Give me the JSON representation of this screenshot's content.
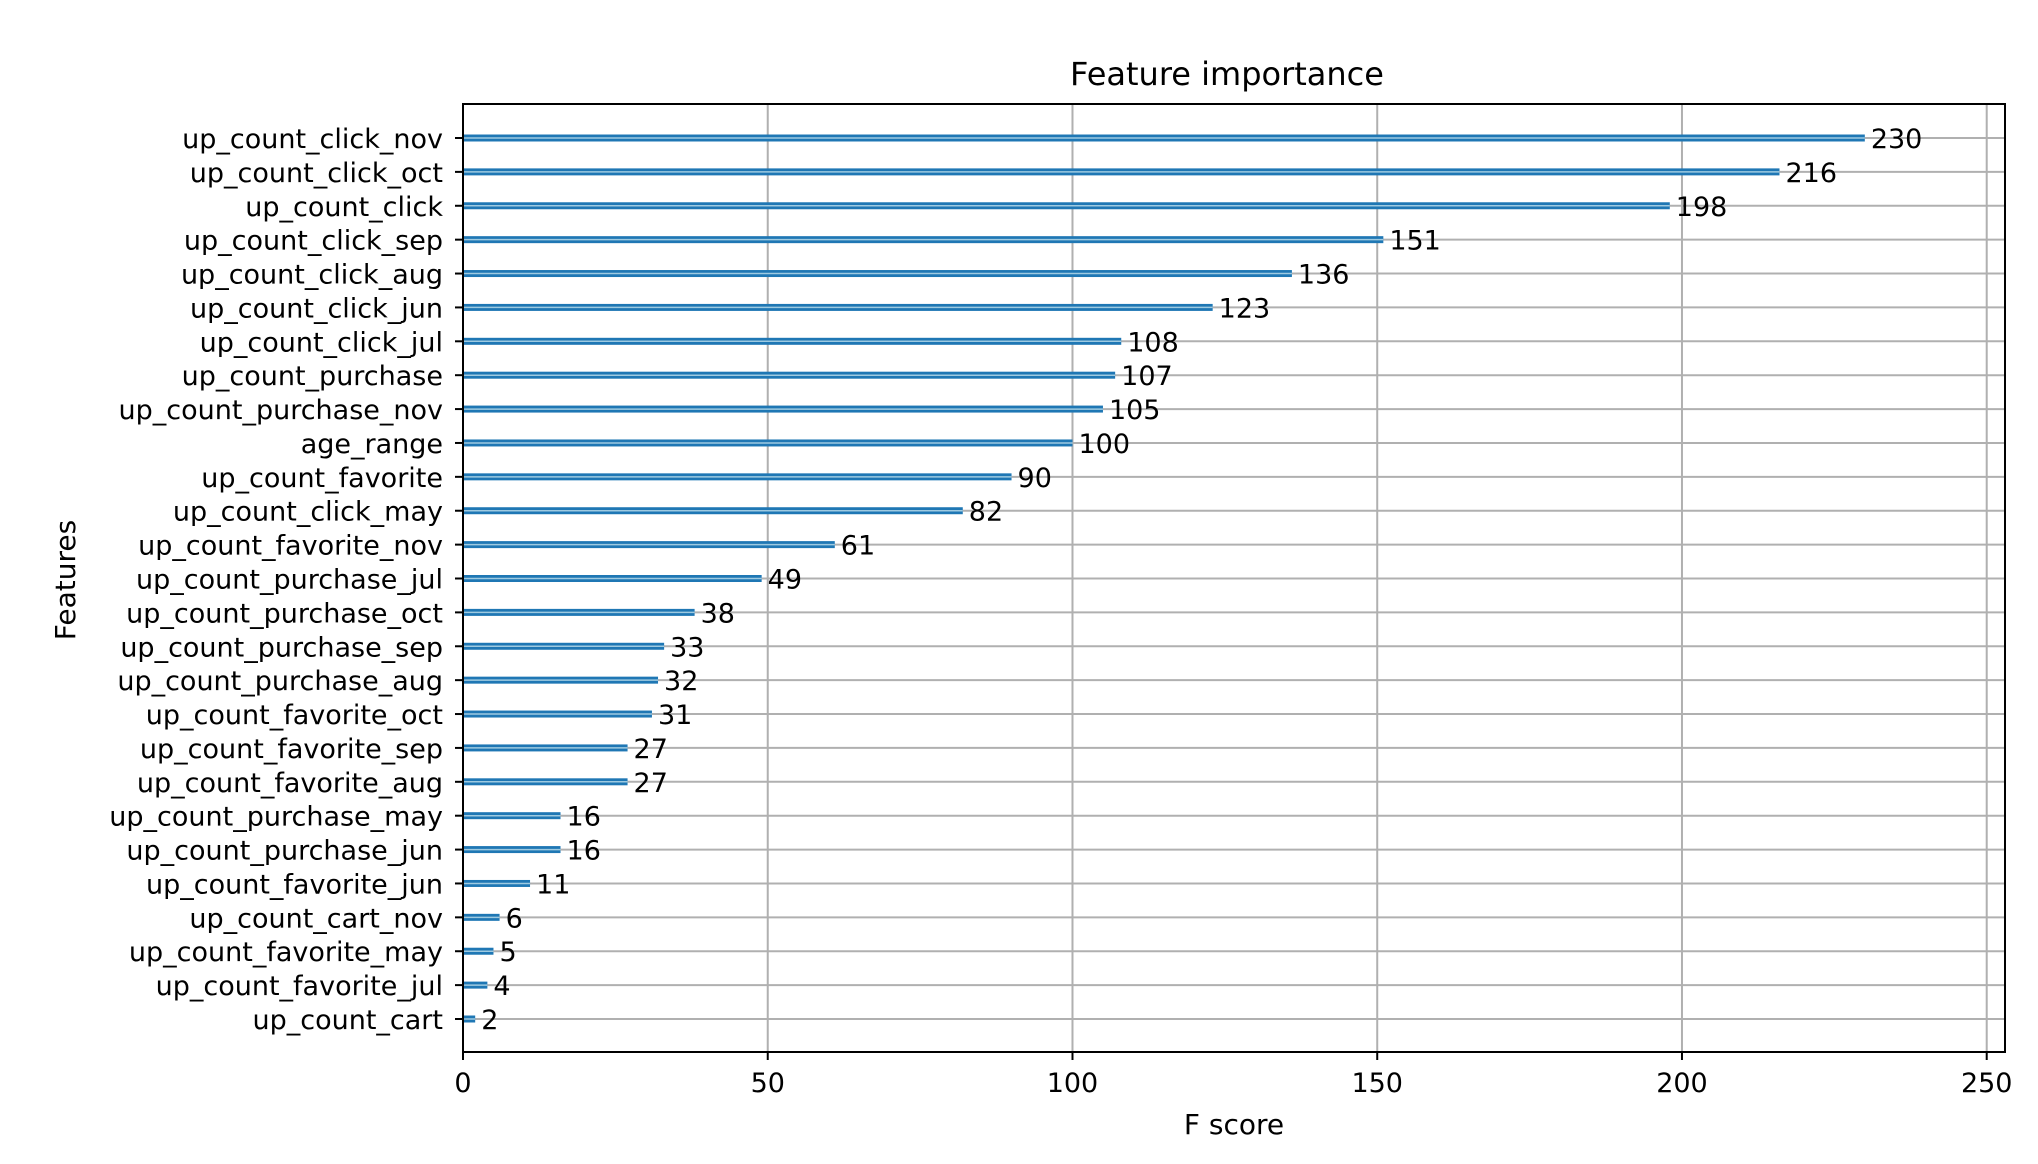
{
  "chart_data": {
    "type": "bar",
    "orientation": "horizontal",
    "title": "Feature importance",
    "xlabel": "F score",
    "ylabel": "Features",
    "xlim": [
      0,
      253
    ],
    "xticks": [
      0,
      50,
      100,
      150,
      200,
      250
    ],
    "grid": true,
    "bar_color": "#1f77b4",
    "categories": [
      "up_count_click_nov",
      "up_count_click_oct",
      "up_count_click",
      "up_count_click_sep",
      "up_count_click_aug",
      "up_count_click_jun",
      "up_count_click_jul",
      "up_count_purchase",
      "up_count_purchase_nov",
      "age_range",
      "up_count_favorite",
      "up_count_click_may",
      "up_count_favorite_nov",
      "up_count_purchase_jul",
      "up_count_purchase_oct",
      "up_count_purchase_sep",
      "up_count_purchase_aug",
      "up_count_favorite_oct",
      "up_count_favorite_sep",
      "up_count_favorite_aug",
      "up_count_purchase_may",
      "up_count_purchase_jun",
      "up_count_favorite_jun",
      "up_count_cart_nov",
      "up_count_favorite_may",
      "up_count_favorite_jul",
      "up_count_cart"
    ],
    "values": [
      230,
      216,
      198,
      151,
      136,
      123,
      108,
      107,
      105,
      100,
      90,
      82,
      61,
      49,
      38,
      33,
      32,
      31,
      27,
      27,
      16,
      16,
      11,
      6,
      5,
      4,
      2
    ]
  }
}
